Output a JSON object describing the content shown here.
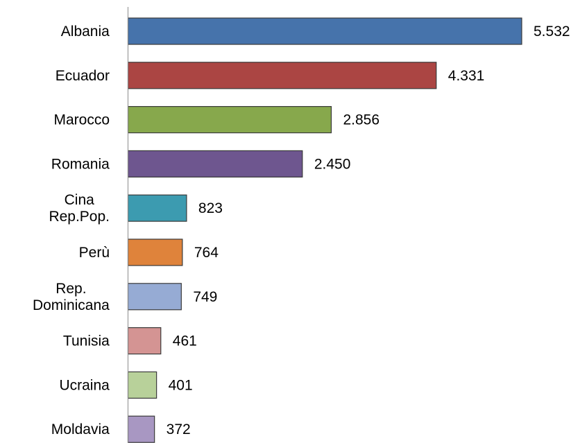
{
  "chart_data": {
    "type": "bar",
    "orientation": "horizontal",
    "categories": [
      [
        "Albania"
      ],
      [
        "Ecuador"
      ],
      [
        "Marocco"
      ],
      [
        "Romania"
      ],
      [
        "Cina",
        "Rep.Pop."
      ],
      [
        "Perù"
      ],
      [
        "Rep.",
        "Dominicana"
      ],
      [
        "Tunisia"
      ],
      [
        "Ucraina"
      ],
      [
        "Moldavia"
      ]
    ],
    "values": [
      5532,
      4331,
      2856,
      2450,
      823,
      764,
      749,
      461,
      401,
      372
    ],
    "value_labels": [
      "5.532",
      "4.331",
      "2.856",
      "2.450",
      "823",
      "764",
      "749",
      "461",
      "401",
      "372"
    ],
    "colors": [
      "#4673ab",
      "#ab4543",
      "#87a84c",
      "#6e568f",
      "#3c9bb0",
      "#df833b",
      "#96abd4",
      "#d49493",
      "#b8d19a",
      "#a897c2"
    ],
    "xlim": [
      0,
      5532
    ],
    "grid": false,
    "legend": "none",
    "title": "",
    "xlabel": "",
    "ylabel": ""
  }
}
